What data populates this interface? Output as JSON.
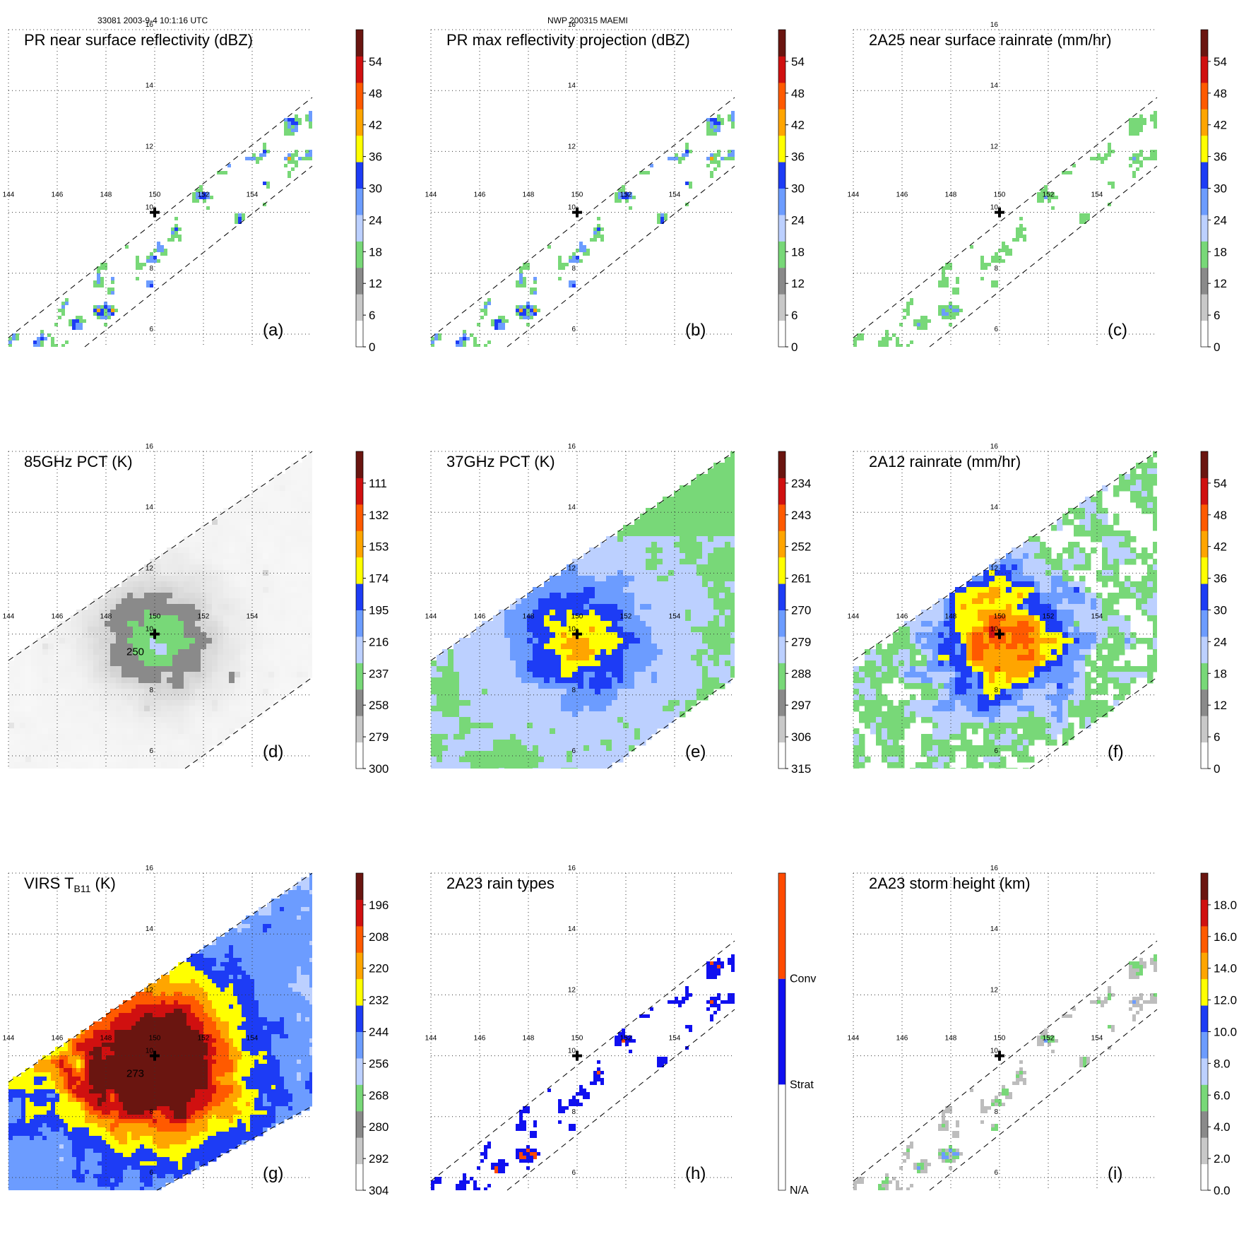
{
  "header": {
    "left": "33081 2003-9-4 10:1:16 UTC",
    "center": "NWP 200315 MAEMI"
  },
  "map": {
    "lon_ticks": [
      144,
      146,
      148,
      150,
      152,
      154
    ],
    "lat_ticks": [
      6,
      8,
      10,
      12,
      14,
      16
    ],
    "center_marker": {
      "lon": 150,
      "lat": 10
    }
  },
  "colors": {
    "palette_12": [
      "#ffffff",
      "#c8c8c8",
      "#8a8a8a",
      "#78d878",
      "#bcd0ff",
      "#6c9cff",
      "#1d3cf5",
      "#ffff00",
      "#ffa500",
      "#ff5a00",
      "#d01010",
      "#6a1510"
    ]
  },
  "chart_data": [
    {
      "type": "heatmap",
      "id": "a",
      "title": "PR near surface reflectivity (dBZ)",
      "label": "(a)",
      "swath": "pr",
      "field": "pr_ref",
      "colorbar": {
        "ticks": [
          "0",
          "6",
          "12",
          "18",
          "24",
          "30",
          "36",
          "42",
          "48",
          "54"
        ],
        "range": [
          0,
          60
        ]
      }
    },
    {
      "type": "heatmap",
      "id": "b",
      "title": "PR max reflectivity projection (dBZ)",
      "label": "(b)",
      "swath": "pr",
      "field": "pr_max",
      "colorbar": {
        "ticks": [
          "0",
          "6",
          "12",
          "18",
          "24",
          "30",
          "36",
          "42",
          "48",
          "54"
        ],
        "range": [
          0,
          60
        ]
      }
    },
    {
      "type": "heatmap",
      "id": "c",
      "title": "2A25 near surface rainrate (mm/hr)",
      "label": "(c)",
      "swath": "pr",
      "field": "rain25",
      "colorbar": {
        "ticks": [
          "0",
          "6",
          "12",
          "18",
          "24",
          "30",
          "36",
          "42",
          "48",
          "54"
        ],
        "range": [
          0,
          60
        ]
      }
    },
    {
      "type": "heatmap",
      "id": "d",
      "title": "85GHz PCT (K)",
      "label": "(d)",
      "swath": "tmi",
      "field": "pct85",
      "contour_label": "250",
      "colorbar": {
        "ticks": [
          "300",
          "279",
          "258",
          "237",
          "216",
          "195",
          "174",
          "153",
          "132",
          "111"
        ],
        "range": [
          300,
          90
        ]
      }
    },
    {
      "type": "heatmap",
      "id": "e",
      "title": "37GHz PCT (K)",
      "label": "(e)",
      "swath": "tmi",
      "field": "pct37",
      "colorbar": {
        "ticks": [
          "315",
          "306",
          "297",
          "288",
          "279",
          "270",
          "261",
          "252",
          "243",
          "234"
        ],
        "range": [
          315,
          225
        ]
      }
    },
    {
      "type": "heatmap",
      "id": "f",
      "title": "2A12 rainrate (mm/hr)",
      "label": "(f)",
      "swath": "tmi",
      "field": "rain12",
      "colorbar": {
        "ticks": [
          "0",
          "6",
          "12",
          "18",
          "24",
          "30",
          "36",
          "42",
          "48",
          "54"
        ],
        "range": [
          0,
          60
        ]
      }
    },
    {
      "type": "heatmap",
      "id": "g",
      "title": "VIRS T",
      "title_sub": "B11",
      "title_tail": " (K)",
      "label": "(g)",
      "swath": "virs",
      "field": "virs",
      "contour_label": "273",
      "colorbar": {
        "ticks": [
          "304",
          "292",
          "280",
          "268",
          "256",
          "244",
          "232",
          "220",
          "208",
          "196"
        ],
        "range": [
          304,
          184
        ]
      }
    },
    {
      "type": "heatmap",
      "id": "h",
      "title": "2A23 rain types",
      "label": "(h)",
      "swath": "pr",
      "field": "rtype",
      "colorbar": {
        "kind": "categorical",
        "categories": [
          "N/A",
          "Strat",
          "Conv"
        ],
        "colors": [
          "#ffffff",
          "#1010f0",
          "#ff4a00"
        ]
      }
    },
    {
      "type": "heatmap",
      "id": "i",
      "title": "2A23 storm height (km)",
      "label": "(i)",
      "swath": "pr",
      "field": "height",
      "colorbar": {
        "ticks": [
          "0.0",
          "2.0",
          "4.0",
          "6.0",
          "8.0",
          "10.0",
          "12.0",
          "14.0",
          "16.0",
          "18.0"
        ],
        "range": [
          0,
          20
        ]
      }
    }
  ]
}
